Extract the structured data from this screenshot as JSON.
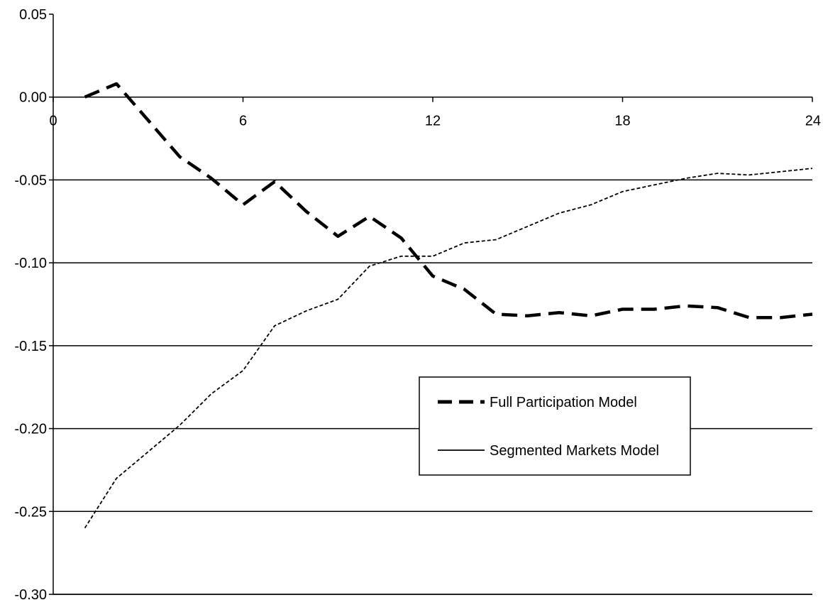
{
  "chart_data": {
    "type": "line",
    "title": "",
    "xlabel": "",
    "ylabel": "",
    "xlim": [
      0,
      24
    ],
    "ylim": [
      -0.3,
      0.05
    ],
    "x_ticks": [
      "0",
      "6",
      "12",
      "18",
      "24"
    ],
    "y_ticks": [
      "0.05",
      "0.00",
      "-0.05",
      "-0.10",
      "-0.15",
      "-0.20",
      "-0.25",
      "-0.30"
    ],
    "grid": "horizontal",
    "legend_position": "center-right",
    "series": [
      {
        "name": "Full Participation Model",
        "style": "long-dash",
        "color": "#000000",
        "x": [
          1,
          2,
          3,
          4,
          5,
          6,
          7,
          8,
          9,
          10,
          11,
          12,
          13,
          14,
          15,
          16,
          17,
          18,
          19,
          20,
          21,
          22,
          23,
          24
        ],
        "y": [
          0.0,
          0.008,
          -0.014,
          -0.036,
          -0.049,
          -0.065,
          -0.051,
          -0.069,
          -0.084,
          -0.072,
          -0.085,
          -0.108,
          -0.116,
          -0.131,
          -0.132,
          -0.13,
          -0.132,
          -0.128,
          -0.128,
          -0.126,
          -0.127,
          -0.133,
          -0.133,
          -0.131
        ]
      },
      {
        "name": "Segmented Markets Model",
        "style": "short-dash",
        "color": "#000000",
        "x": [
          1,
          2,
          3,
          4,
          5,
          6,
          7,
          8,
          9,
          10,
          11,
          12,
          13,
          14,
          15,
          16,
          17,
          18,
          19,
          20,
          21,
          22,
          23,
          24
        ],
        "y": [
          -0.26,
          -0.23,
          -0.214,
          -0.198,
          -0.179,
          -0.165,
          -0.138,
          -0.129,
          -0.122,
          -0.102,
          -0.096,
          -0.096,
          -0.088,
          -0.086,
          -0.078,
          -0.07,
          -0.065,
          -0.057,
          -0.053,
          -0.049,
          -0.046,
          -0.047,
          -0.045,
          -0.043
        ]
      }
    ]
  }
}
